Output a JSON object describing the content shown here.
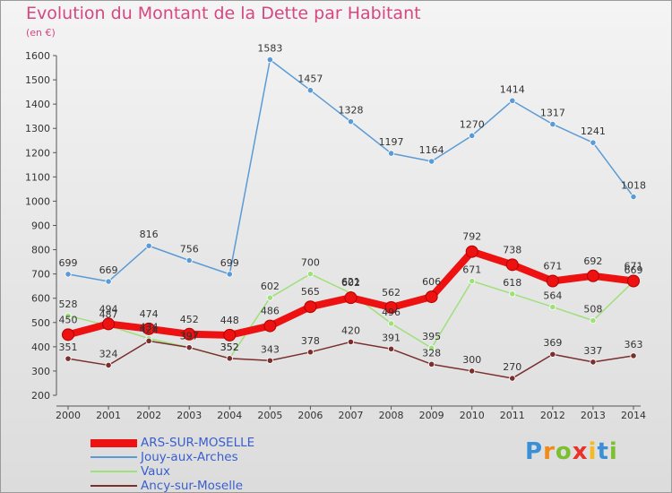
{
  "title": "Evolution du Montant de la Dette par Habitant",
  "subtitle": "(en €)",
  "brand": {
    "text": "Proxiti",
    "letters": [
      {
        "ch": "P",
        "color": "#3a8fd6"
      },
      {
        "ch": "r",
        "color": "#f08a1a"
      },
      {
        "ch": "o",
        "color": "#7cbf2f"
      },
      {
        "ch": "x",
        "color": "#e8322b"
      },
      {
        "ch": "i",
        "color": "#f5b921"
      },
      {
        "ch": "t",
        "color": "#3a8fd6"
      },
      {
        "ch": "i",
        "color": "#7cbf2f"
      }
    ]
  },
  "chart_data": {
    "type": "line",
    "title": "Evolution du Montant de la Dette par Habitant",
    "subtitle": "(en €)",
    "x": [
      2000,
      2001,
      2002,
      2003,
      2004,
      2005,
      2006,
      2007,
      2008,
      2009,
      2010,
      2011,
      2012,
      2013,
      2014
    ],
    "ylim": [
      200,
      1600
    ],
    "yticks": [
      200,
      300,
      400,
      500,
      600,
      700,
      800,
      900,
      1000,
      1100,
      1200,
      1300,
      1400,
      1500,
      1600
    ],
    "grid": false,
    "legend_position": "bottom-left",
    "series": [
      {
        "name": "ARS-SUR-MOSELLE",
        "color": "#ee1111",
        "emphasis": true,
        "values": [
          450,
          494,
          474,
          452,
          448,
          486,
          565,
          602,
          562,
          606,
          792,
          738,
          671,
          692,
          671
        ]
      },
      {
        "name": "Jouy-aux-Arches",
        "color": "#5b9bd5",
        "values": [
          699,
          669,
          816,
          756,
          699,
          1583,
          1457,
          1328,
          1197,
          1164,
          1270,
          1414,
          1317,
          1241,
          1018
        ]
      },
      {
        "name": "Vaux",
        "color": "#9ee07a",
        "values": [
          528,
          487,
          434,
          397,
          352,
          602,
          700,
          621,
          496,
          395,
          671,
          618,
          564,
          508,
          669
        ]
      },
      {
        "name": "Ancy-sur-Moselle",
        "color": "#7a2e2e",
        "values": [
          351,
          324,
          424,
          397,
          352,
          343,
          378,
          420,
          391,
          328,
          300,
          270,
          369,
          337,
          363
        ]
      }
    ]
  }
}
